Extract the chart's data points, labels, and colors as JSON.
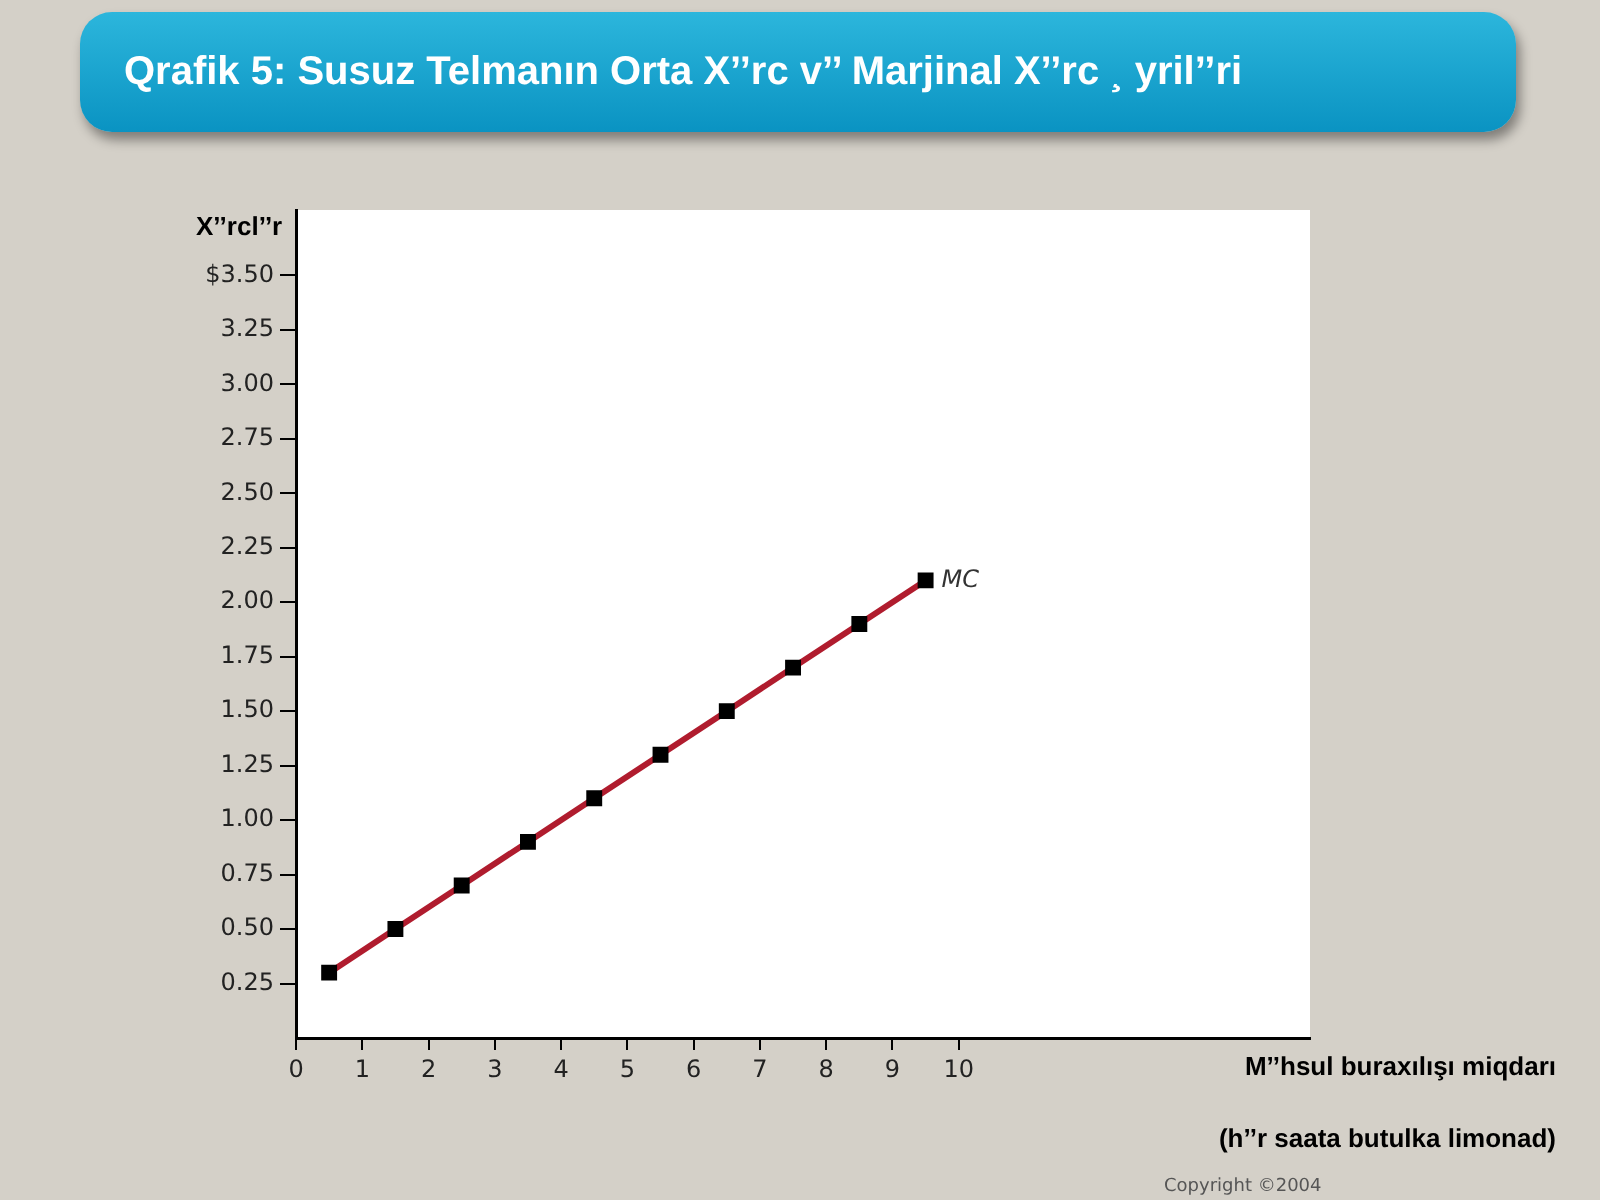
{
  "chart_data": {
    "type": "line",
    "title": "Qrafik 5: Susuz Telmanın Orta X’’rc v’’ Marjinal X’’rc ¸ yril’’ri",
    "xlabel": "M’’hsul buraxılışı miqdarı",
    "ylabel": "X’’rcl’’r",
    "annotations": [
      "(h’’r saata butulka limonad)",
      "Copyright ©2004"
    ],
    "x": [
      0.5,
      1.5,
      2.5,
      3.5,
      4.5,
      5.5,
      6.5,
      7.5,
      8.5,
      9.5
    ],
    "series": [
      {
        "name": "MC",
        "color": "#b01c2e",
        "values": [
          0.3,
          0.5,
          0.7,
          0.9,
          1.1,
          1.3,
          1.5,
          1.7,
          1.9,
          2.1
        ]
      }
    ],
    "xlim": [
      0,
      15.3
    ],
    "xticks": [
      0,
      1,
      2,
      3,
      4,
      5,
      6,
      7,
      8,
      9,
      10
    ],
    "ylim": [
      0,
      3.8
    ],
    "yticks": [
      {
        "value": 0.25,
        "label": "0.25"
      },
      {
        "value": 0.5,
        "label": "0.50"
      },
      {
        "value": 0.75,
        "label": "0.75"
      },
      {
        "value": 1,
        "label": "1.00"
      },
      {
        "value": 1.25,
        "label": "1.25"
      },
      {
        "value": 1.5,
        "label": "1.50"
      },
      {
        "value": 1.75,
        "label": "1.75"
      },
      {
        "value": 2,
        "label": "2.00"
      },
      {
        "value": 2.25,
        "label": "2.25"
      },
      {
        "value": 2.5,
        "label": "2.50"
      },
      {
        "value": 2.75,
        "label": "2.75"
      },
      {
        "value": 3,
        "label": "3.00"
      },
      {
        "value": 3.25,
        "label": "3.25"
      },
      {
        "value": 3.5,
        "label": "$3.50"
      }
    ],
    "grid": false,
    "legend": false,
    "marker": "square",
    "line_style": "solid"
  }
}
